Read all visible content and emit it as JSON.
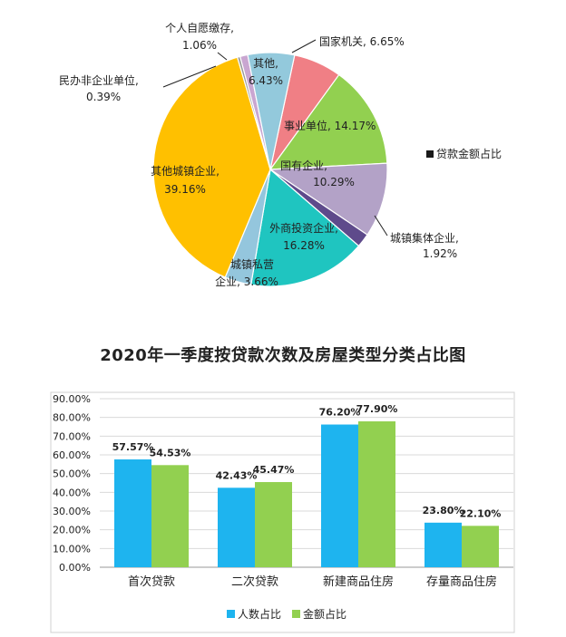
{
  "chart_data": [
    {
      "type": "pie",
      "title": "",
      "legend": {
        "entries": [
          "贷款金额占比"
        ],
        "position": "right",
        "color": "#1a1a1a"
      },
      "slices": [
        {
          "label": "国家机关,",
          "value_label": "6.65%",
          "value": 6.65,
          "color": "#f07f85"
        },
        {
          "label": "事业单位,",
          "value_label": "14.17%",
          "value": 14.17,
          "color": "#92d050"
        },
        {
          "label": "国有企业,",
          "value_label": "10.29%",
          "value": 10.29,
          "color": "#b3a2c7"
        },
        {
          "label": "城镇集体企业,",
          "value_label": "1.92%",
          "value": 1.92,
          "color": "#5e4a8b"
        },
        {
          "label": "外商投资企业,",
          "value_label": "16.28%",
          "value": 16.28,
          "color": "#1fc5c0"
        },
        {
          "label": "城镇私营",
          "label2": "企业,",
          "value_label": "3.66%",
          "value": 3.66,
          "color": "#94c6dd"
        },
        {
          "label": "其他城镇企业,",
          "value_label": "39.16%",
          "value": 39.16,
          "color": "#ffc000"
        },
        {
          "label": "民办非企业单位,",
          "value_label": "0.39%",
          "value": 0.39,
          "color": "#9a9a9a"
        },
        {
          "label": "个人自愿缴存,",
          "value_label": "1.06%",
          "value": 1.06,
          "color": "#c9a6d1"
        },
        {
          "label": "其他,",
          "value_label": "6.43%",
          "value": 6.43,
          "color": "#93c9dc"
        }
      ]
    },
    {
      "type": "bar",
      "title": "2020年一季度按贷款次数及房屋类型分类占比图",
      "categories": [
        "首次贷款",
        "二次贷款",
        "新建商品住房",
        "存量商品住房"
      ],
      "series": [
        {
          "name": "人数占比",
          "values": [
            57.57,
            42.43,
            76.2,
            23.8
          ],
          "labels": [
            "57.57%",
            "42.43%",
            "76.20%",
            "23.80%"
          ],
          "color": "#1eb4ef"
        },
        {
          "name": "金额占比",
          "values": [
            54.53,
            45.47,
            77.9,
            22.1
          ],
          "labels": [
            "54.53%",
            "45.47%",
            "77.90%",
            "22.10%"
          ],
          "color": "#92d050"
        }
      ],
      "ylim": [
        0,
        90
      ],
      "yticks": [
        "0.00%",
        "10.00%",
        "20.00%",
        "30.00%",
        "40.00%",
        "50.00%",
        "60.00%",
        "70.00%",
        "80.00%",
        "90.00%"
      ],
      "grid": true,
      "legend_position": "bottom"
    }
  ]
}
